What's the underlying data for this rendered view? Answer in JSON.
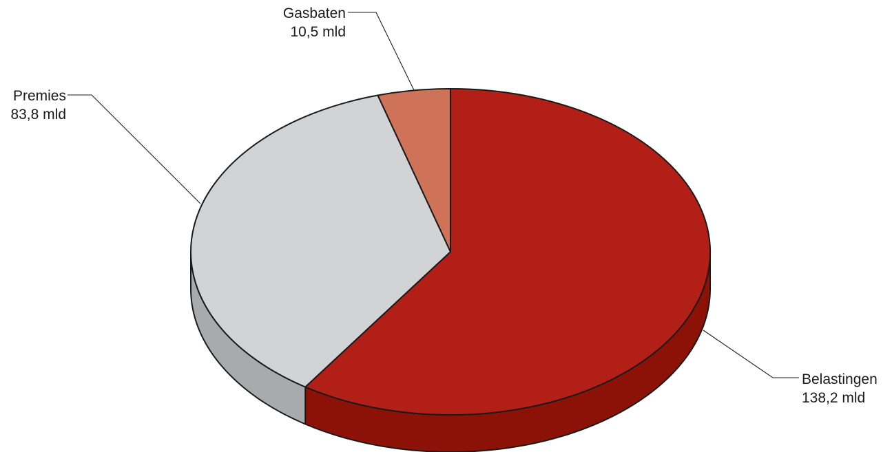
{
  "chart_data": {
    "type": "pie",
    "style": "3d",
    "title": "",
    "slices": [
      {
        "name": "Belastingen",
        "value": 138.2,
        "value_label": "138,2 mld",
        "color": "#b11f17",
        "side_color": "#8c1208"
      },
      {
        "name": "Premies",
        "value": 83.8,
        "value_label": "83,8 mld",
        "color": "#d2d3d5",
        "side_color": "#a9aaad"
      },
      {
        "name": "Gasbaten",
        "value": 10.5,
        "value_label": "10,5 mld",
        "color": "#cf7358",
        "side_color": "#a85a44"
      }
    ],
    "start_angle": "top",
    "direction": "clockwise",
    "legend": "none"
  }
}
